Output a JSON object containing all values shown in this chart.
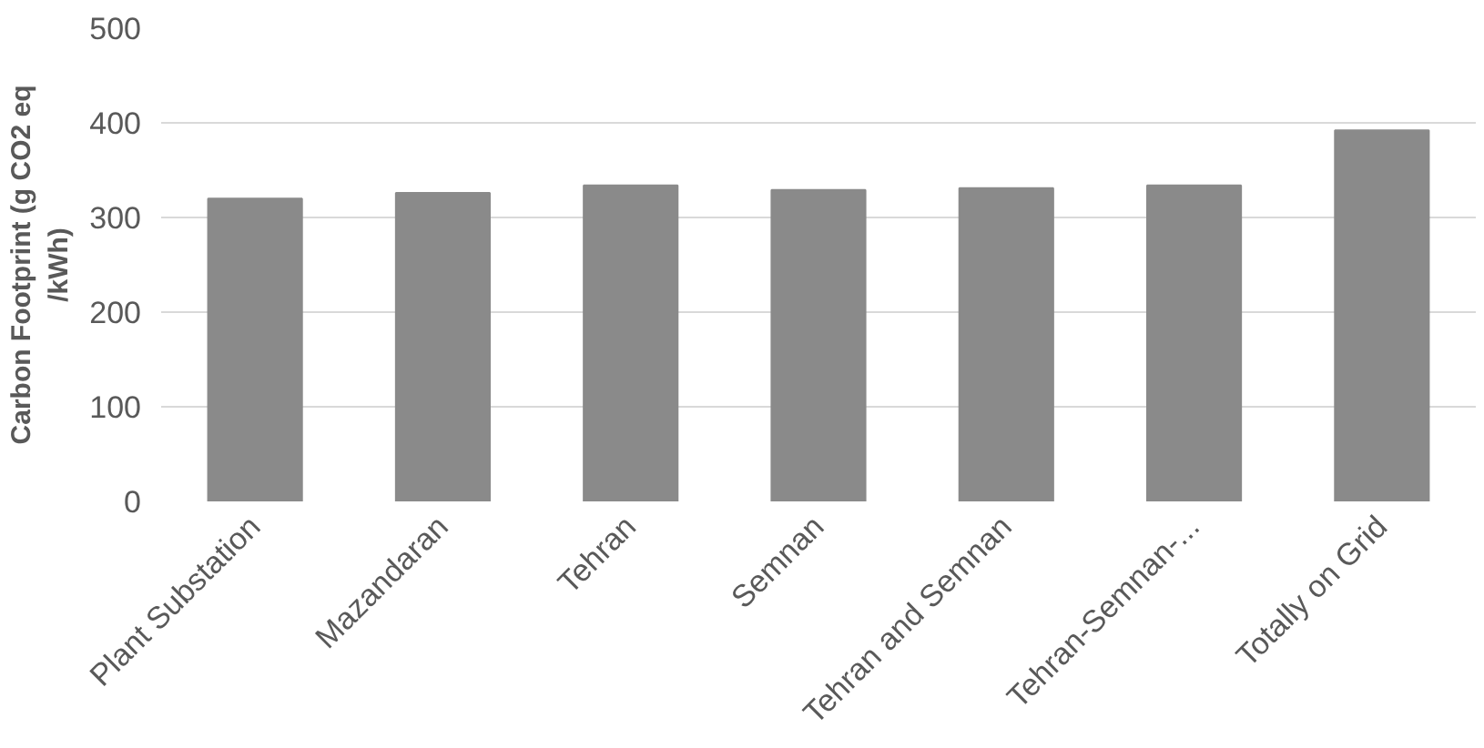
{
  "chart_data": {
    "type": "bar",
    "ylabel": "Carbon Footprint (g CO2 eq\n/kWh)",
    "categories": [
      "Plant Substation",
      "Mazandaran",
      "Tehran",
      "Semnan",
      "Tehran and Semnan",
      "Tehran-Semnan-...",
      "Totally on Grid"
    ],
    "values": [
      320,
      326,
      334,
      329,
      331,
      334,
      392
    ],
    "color": "#8a8a8a",
    "ylim": [
      0,
      500
    ],
    "yticks": [
      0,
      100,
      200,
      300,
      400,
      500
    ],
    "grid": "y"
  }
}
